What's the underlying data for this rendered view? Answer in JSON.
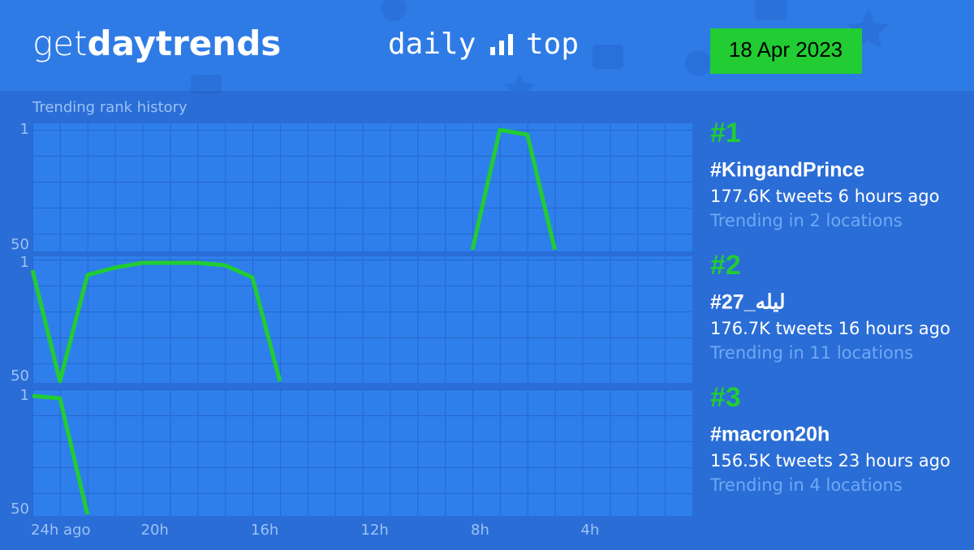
{
  "header": {
    "logo": [
      "get",
      "day",
      "trends"
    ],
    "tagline": [
      "daily",
      "top"
    ],
    "date": "18 Apr 2023"
  },
  "chart_data": [
    {
      "type": "line",
      "title": "Trending rank history",
      "x": [
        8,
        7,
        6,
        5
      ],
      "values": [
        50,
        1,
        3,
        50
      ],
      "color": "#22cc33",
      "xlim": [
        24,
        0
      ],
      "ylim": [
        50,
        1
      ],
      "yticks": [
        1,
        50
      ]
    },
    {
      "type": "line",
      "x": [
        24,
        23,
        22,
        21,
        20,
        19,
        18,
        17,
        16,
        15
      ],
      "values": [
        4,
        50,
        6,
        3,
        1,
        1,
        1,
        2,
        7,
        50
      ],
      "color": "#22cc33",
      "xlim": [
        24,
        0
      ],
      "ylim": [
        50,
        1
      ],
      "yticks": [
        1,
        50
      ]
    },
    {
      "type": "line",
      "x": [
        24,
        23,
        22
      ],
      "values": [
        1,
        2,
        50
      ],
      "color": "#22cc33",
      "xlim": [
        24,
        0
      ],
      "ylim": [
        50,
        1
      ],
      "yticks": [
        1,
        50
      ],
      "xticks": [
        {
          "value": 24,
          "label": "24h ago"
        },
        {
          "value": 20,
          "label": "20h"
        },
        {
          "value": 16,
          "label": "16h"
        },
        {
          "value": 12,
          "label": "12h"
        },
        {
          "value": 8,
          "label": "8h"
        },
        {
          "value": 4,
          "label": "4h"
        }
      ]
    }
  ],
  "trends": [
    {
      "rank": "#1",
      "name": "#KingandPrince",
      "tweets": "177.6K tweets 6 hours ago",
      "locations": "Trending in 2 locations"
    },
    {
      "rank": "#2",
      "name": "#ليله_27",
      "tweets": "176.7K tweets 16 hours ago",
      "locations": "Trending in 11 locations"
    },
    {
      "rank": "#3",
      "name": "#macron20h",
      "tweets": "156.5K tweets 23 hours ago",
      "locations": "Trending in 4 locations"
    }
  ]
}
